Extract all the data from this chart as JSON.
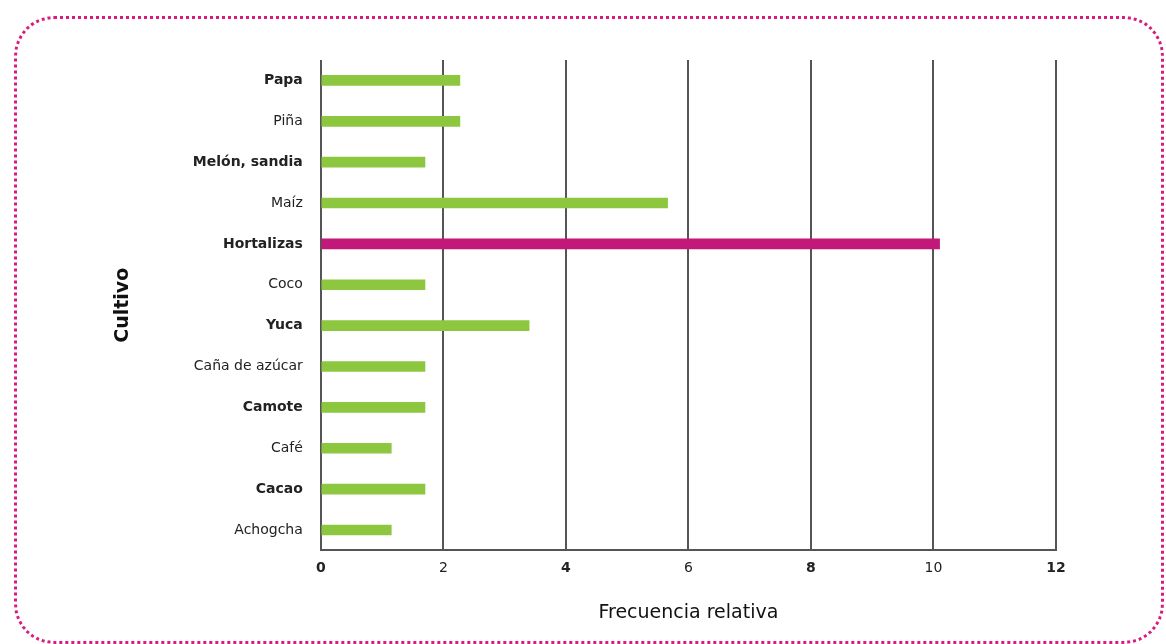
{
  "chart_data": {
    "type": "bar",
    "orientation": "horizontal",
    "xlabel": "Frecuencia relativa",
    "ylabel": "Cultivo",
    "categories": [
      "Papa",
      "Piña",
      "Melón, sandia",
      "Maíz",
      "Hortalizas",
      "Coco",
      "Yuca",
      "Caña de azúcar",
      "Camote",
      "Café",
      "Cacao",
      "Achogcha"
    ],
    "values": [
      2.27,
      2.27,
      1.7,
      5.66,
      10.1,
      1.7,
      3.4,
      1.7,
      1.7,
      1.15,
      1.7,
      1.15
    ],
    "colors": [
      "#8dc63f",
      "#8dc63f",
      "#8dc63f",
      "#8dc63f",
      "#c2187a",
      "#8dc63f",
      "#8dc63f",
      "#8dc63f",
      "#8dc63f",
      "#8dc63f",
      "#8dc63f",
      "#8dc63f"
    ],
    "xlim": [
      0,
      12
    ],
    "xticks": [
      0,
      2,
      4,
      6,
      8,
      10,
      12
    ],
    "grid": "x",
    "legend": false
  }
}
